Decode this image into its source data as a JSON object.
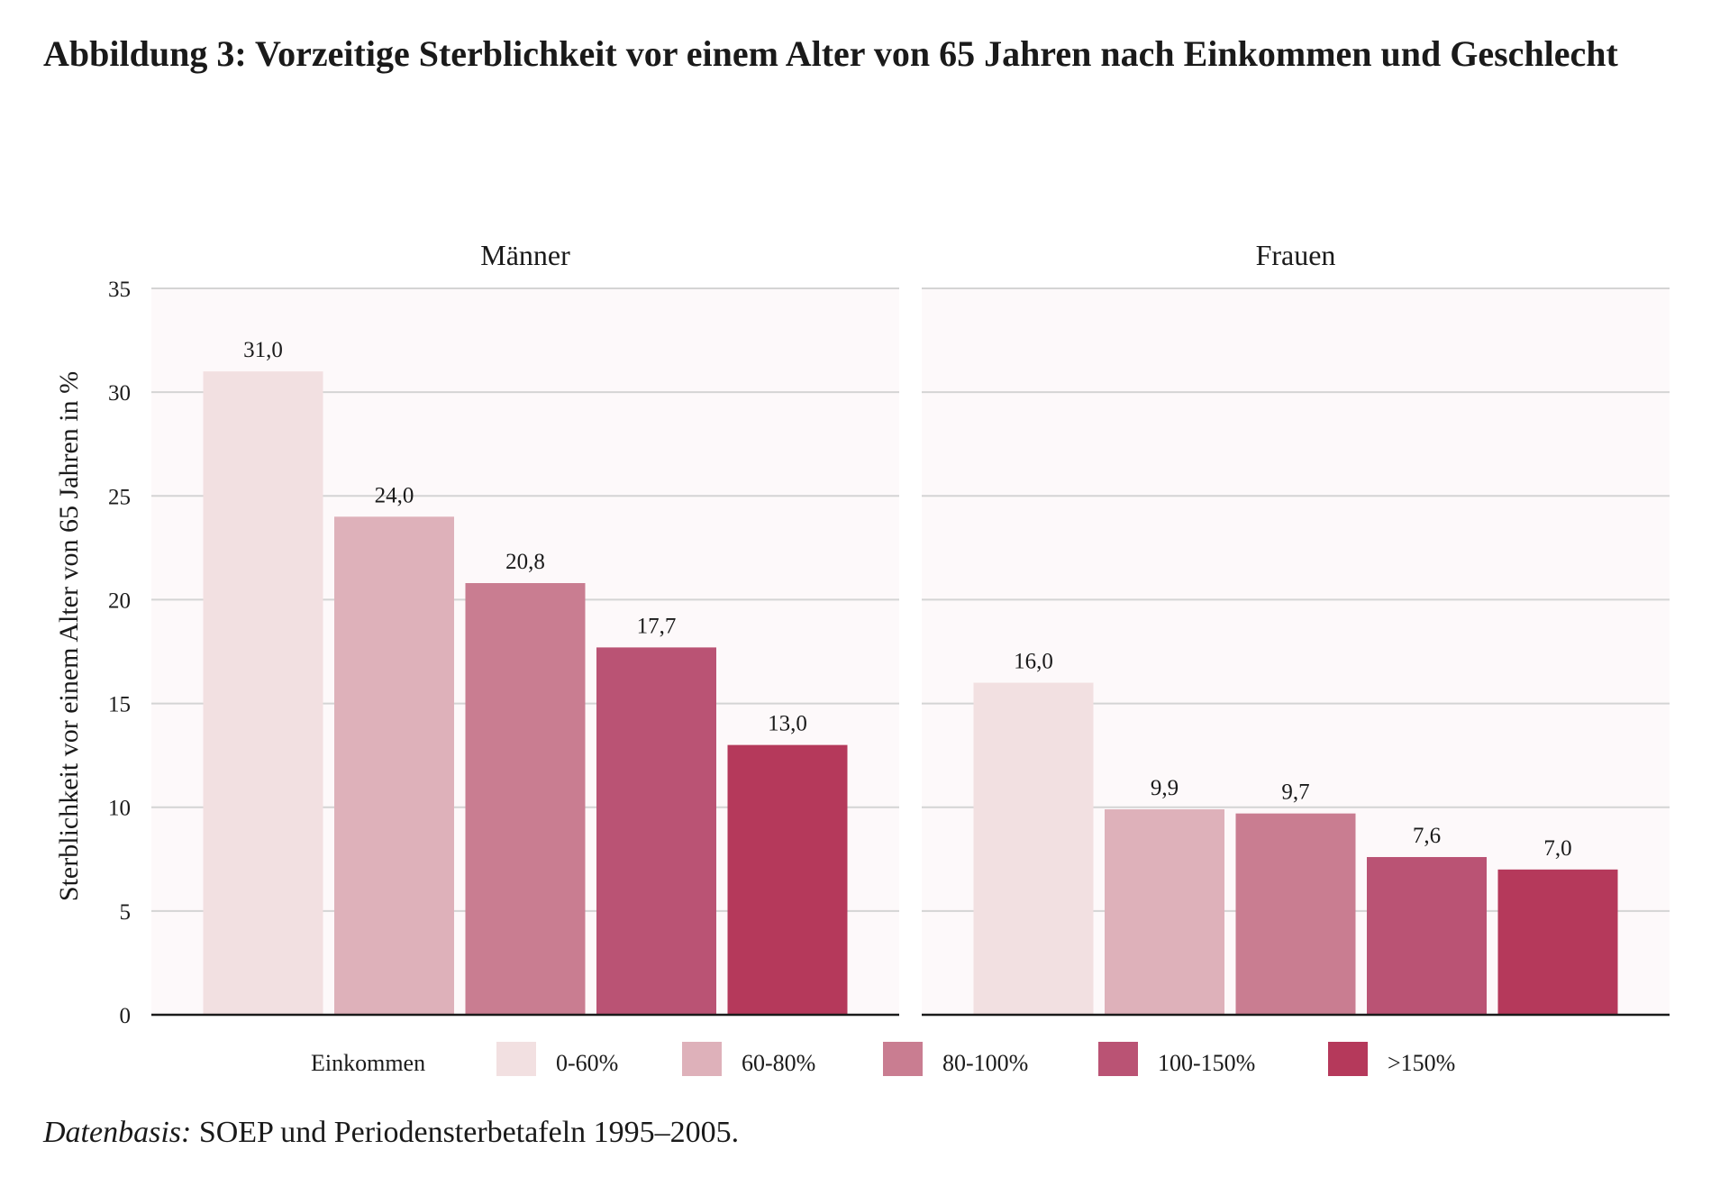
{
  "figure": {
    "title": "Abbildung 3: Vorzeitige Sterblichkeit vor einem Alter von 65 Jahren nach Einkommen und Geschlecht",
    "source_label": "Datenbasis:",
    "source_text": "SOEP und Periodensterbetafeln 1995–2005."
  },
  "chart_data": {
    "type": "bar",
    "ylabel": "Sterblichkeit vor einem Alter von 65 Jahren in %",
    "ylim": [
      0,
      35
    ],
    "yticks": [
      0,
      5,
      10,
      15,
      20,
      25,
      30,
      35
    ],
    "grid": true,
    "legend": {
      "title": "Einkommen",
      "placement": "bottom",
      "entries": [
        "0-60%",
        "60-80%",
        "80-100%",
        "100-150%",
        ">150%"
      ]
    },
    "categories": [
      "0-60%",
      "60-80%",
      "80-100%",
      "100-150%",
      ">150%"
    ],
    "colors": [
      "#f2e0e1",
      "#deb1ba",
      "#c97d91",
      "#ba5374",
      "#b5395b"
    ],
    "panels": [
      {
        "name": "Männer",
        "values": [
          31.0,
          24.0,
          20.8,
          17.7,
          13.0
        ],
        "labels": [
          "31,0",
          "24,0",
          "20,8",
          "17,7",
          "13,0"
        ]
      },
      {
        "name": "Frauen",
        "values": [
          16.0,
          9.9,
          9.7,
          7.6,
          7.0
        ],
        "labels": [
          "16,0",
          "9,9",
          "9,7",
          "7,6",
          "7,0"
        ]
      }
    ]
  }
}
